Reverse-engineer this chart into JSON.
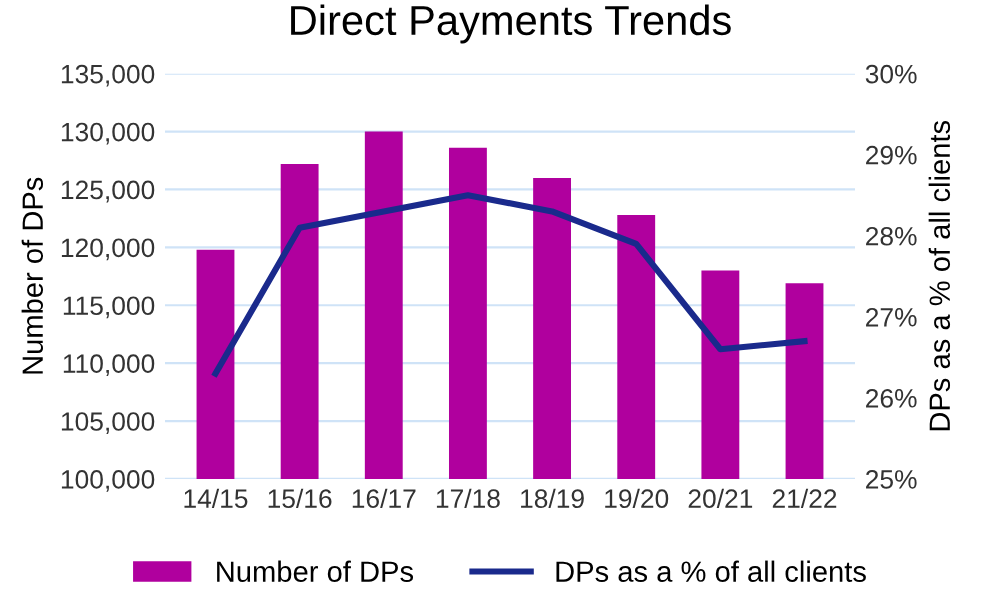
{
  "chart_data": {
    "type": "bar",
    "title": "Direct Payments Trends",
    "categories": [
      "14/15",
      "15/16",
      "16/17",
      "17/18",
      "18/19",
      "19/20",
      "20/21",
      "21/22"
    ],
    "series": [
      {
        "name": "Number of DPs",
        "color": "#b0009e",
        "values": [
          119800,
          127200,
          130000,
          128600,
          126000,
          122800,
          118000,
          116900
        ]
      },
      {
        "name": "DPs as a % of all clients",
        "type": "line",
        "axis": "y2",
        "color": "#1a2a8c",
        "values": [
          26.3,
          28.1,
          28.3,
          28.5,
          28.3,
          27.9,
          26.6,
          26.7
        ]
      }
    ],
    "ylabel": "Number of DPs",
    "y2label": "DPs as a % of all clients",
    "ylim": [
      100000,
      135000
    ],
    "yticks": [
      {
        "value": 100000,
        "label": "100,000"
      },
      {
        "value": 105000,
        "label": "105,000"
      },
      {
        "value": 110000,
        "label": "110,000"
      },
      {
        "value": 115000,
        "label": "115,000"
      },
      {
        "value": 120000,
        "label": "120,000"
      },
      {
        "value": 125000,
        "label": "125,000"
      },
      {
        "value": 130000,
        "label": "130,000"
      },
      {
        "value": 135000,
        "label": "135,000"
      }
    ],
    "y2lim": [
      25,
      30
    ],
    "y2ticks": [
      {
        "value": 25,
        "label": "25%"
      },
      {
        "value": 26,
        "label": "26%"
      },
      {
        "value": 27,
        "label": "27%"
      },
      {
        "value": 28,
        "label": "28%"
      },
      {
        "value": 29,
        "label": "29%"
      },
      {
        "value": 30,
        "label": "30%"
      }
    ],
    "grid": "y",
    "legend": "bottom",
    "marker": "none",
    "line_style": "solid"
  }
}
